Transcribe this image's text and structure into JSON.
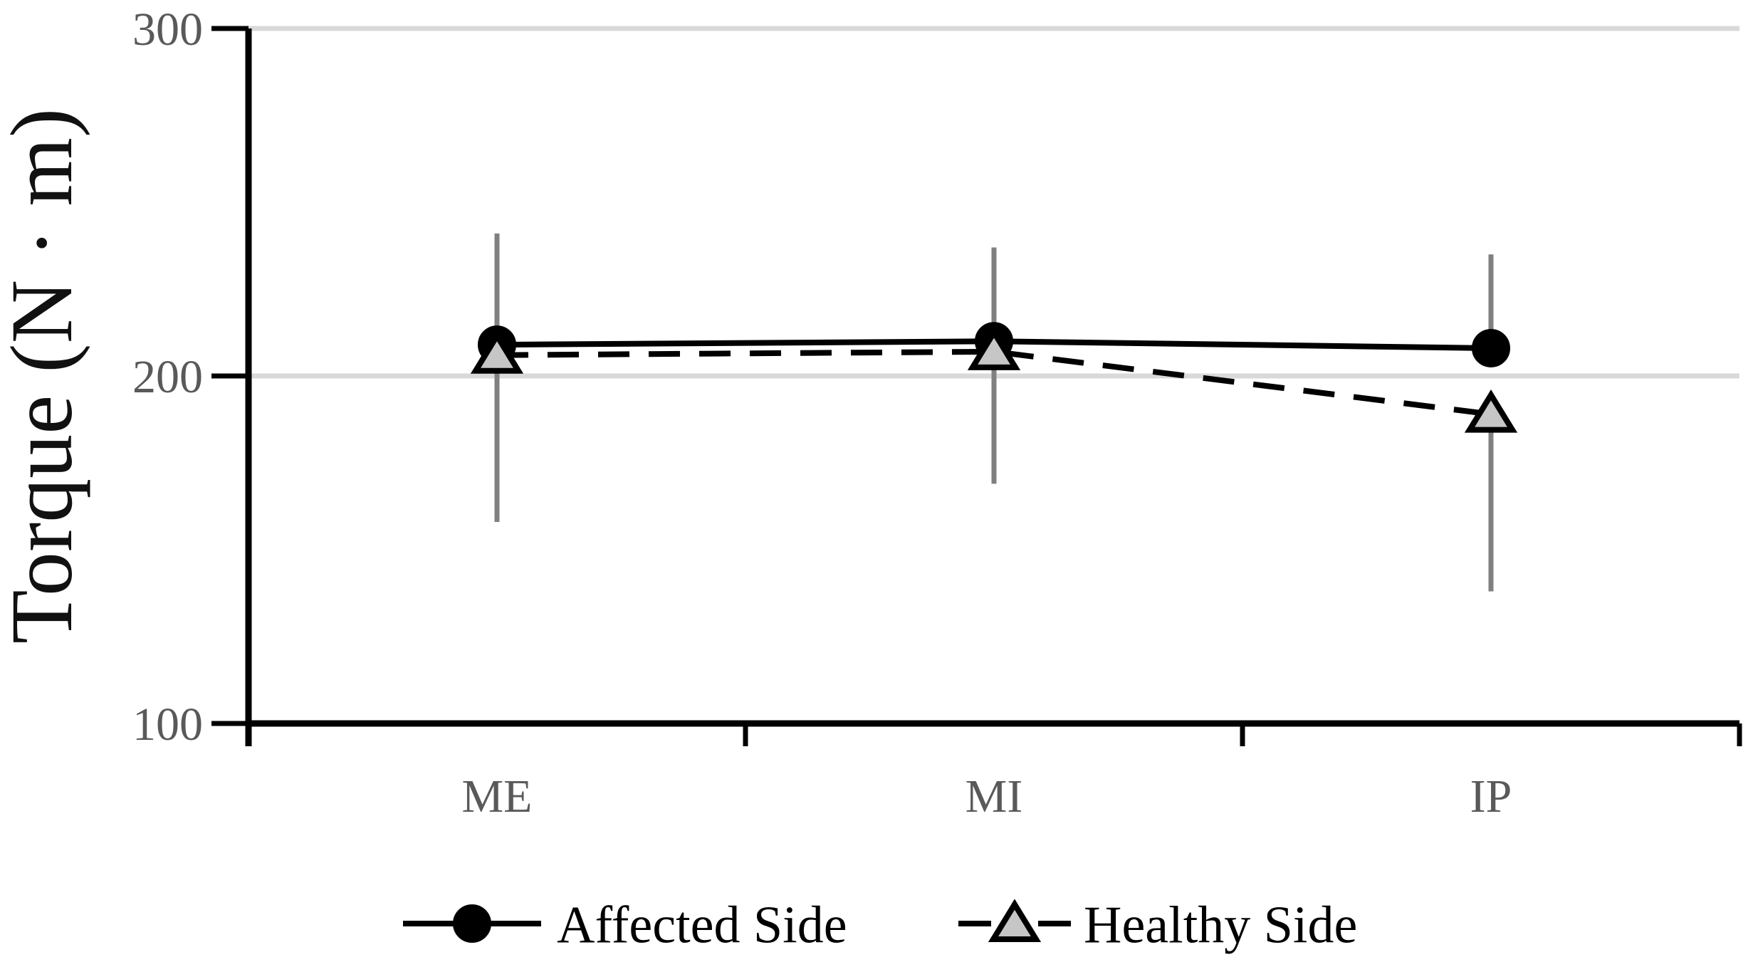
{
  "chart_data": {
    "type": "line",
    "title": "",
    "ylabel": "Torque (N · m)",
    "xlabel": "",
    "categories": [
      "ME",
      "MI",
      "IP"
    ],
    "ylim": [
      100,
      300
    ],
    "yticks": [
      100,
      200,
      300
    ],
    "ytick_labels": [
      "100",
      "200",
      "300"
    ],
    "gridline_values": [
      200,
      300
    ],
    "grid": "horizontal-only",
    "legend_position": "bottom-center",
    "series": [
      {
        "name": "Affected Side",
        "values": [
          209,
          210,
          208
        ],
        "error_top": [
          241,
          237,
          235
        ],
        "error_bottom": [
          158,
          169,
          208
        ],
        "line_style": "solid",
        "marker": "circle",
        "line_color": "#000000",
        "marker_fill": "#000000",
        "marker_stroke": "#000000"
      },
      {
        "name": "Healthy Side",
        "values": [
          206,
          207,
          189
        ],
        "error_top": [
          206,
          207,
          189
        ],
        "error_bottom": [
          158,
          169,
          138
        ],
        "line_style": "dashed",
        "marker": "triangle",
        "line_color": "#000000",
        "marker_fill": "#c6c6c6",
        "marker_stroke": "#000000"
      }
    ],
    "error_bar_color": "#808080",
    "gridline_color": "#d9d9d9",
    "axis_color": "#000000",
    "tick_label_color": "#595959"
  }
}
